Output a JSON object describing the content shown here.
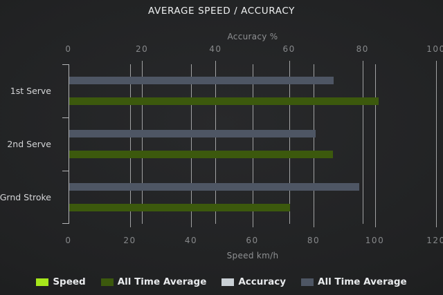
{
  "title": "AVERAGE SPEED / ACCURACY",
  "colors": {
    "background": "#202122",
    "title_text": "#eef0f1",
    "axis_text": "#8f9193",
    "tick_text": "#87898b",
    "category_text": "#d5d6d8",
    "gridline": "#a2a3a4",
    "speed_bar": "#a6e71b",
    "speed_avg_bar": "#3c590d",
    "accuracy_bar": "#c9d0d5",
    "accuracy_avg_bar": "#4e5664"
  },
  "chart_data": {
    "type": "bar",
    "orientation": "horizontal",
    "title": "AVERAGE SPEED / ACCURACY",
    "categories": [
      "1st Serve",
      "2nd Serve",
      "Grnd Stroke"
    ],
    "series": [
      {
        "name": "Speed",
        "axis": "speed",
        "color": "#a6e71b",
        "values": [
          0,
          0,
          0
        ]
      },
      {
        "name": "All Time Average",
        "axis": "speed",
        "color": "#3c590d",
        "values": [
          101,
          86,
          72
        ]
      },
      {
        "name": "Accuracy",
        "axis": "accuracy",
        "color": "#c9d0d5",
        "values": [
          0,
          0,
          0
        ]
      },
      {
        "name": "All Time Average",
        "axis": "accuracy",
        "color": "#4e5664",
        "values": [
          72,
          67,
          79
        ]
      }
    ],
    "axes": {
      "top": {
        "label": "Accuracy %",
        "min": 0,
        "max": 100,
        "ticks": [
          0,
          20,
          40,
          60,
          80,
          100
        ]
      },
      "bottom": {
        "label": "Speed km/h",
        "min": 0,
        "max": 120,
        "ticks": [
          0,
          20,
          40,
          60,
          80,
          100,
          120
        ]
      }
    },
    "grid": true,
    "legend_position": "bottom"
  }
}
